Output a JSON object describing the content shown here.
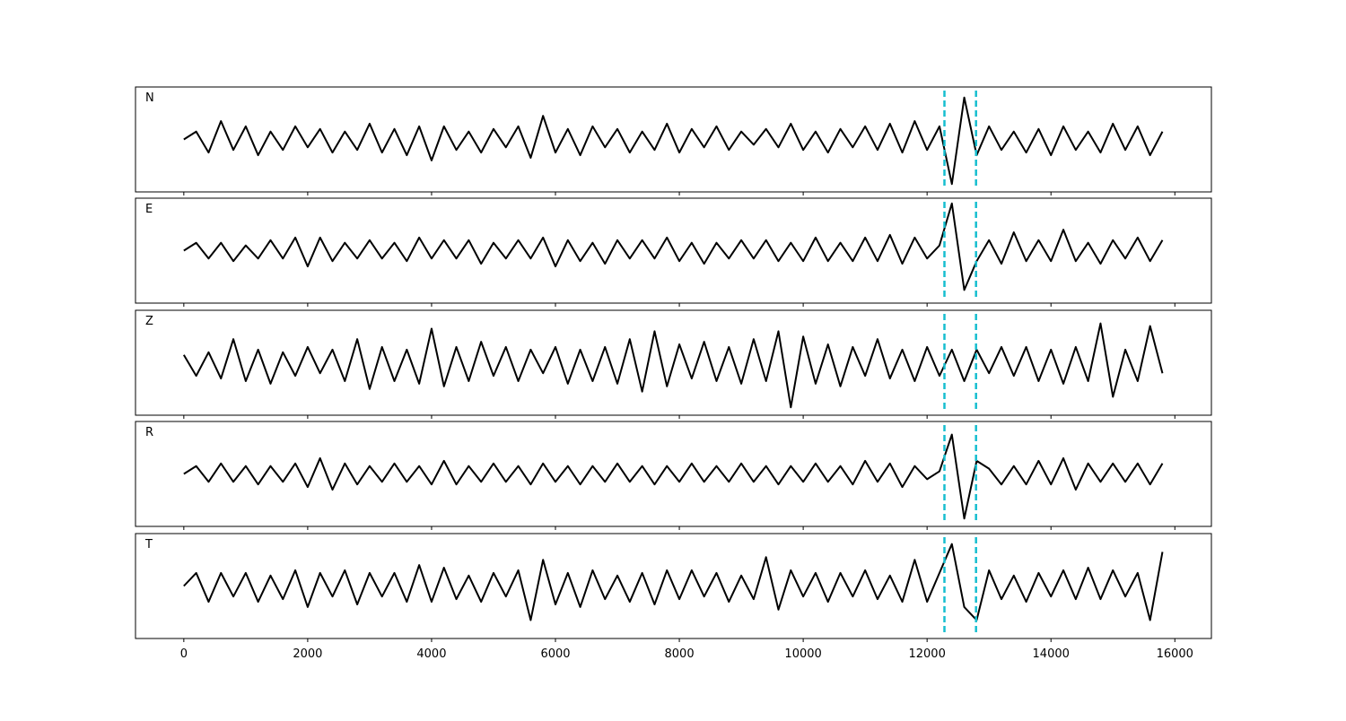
{
  "chart_data": [
    {
      "type": "line",
      "title": "N",
      "color": "#000000",
      "xlim": [
        -780,
        16590
      ],
      "ylim": [
        -2,
        2
      ],
      "xticks": [
        0,
        2000,
        4000,
        6000,
        8000,
        10000,
        12000,
        14000,
        16000
      ],
      "show_xtick_labels": false,
      "vlines": [
        12280,
        12790
      ],
      "vline_color": "#17becf",
      "x": [
        0,
        200,
        400,
        600,
        800,
        1000,
        1200,
        1400,
        1600,
        1800,
        2000,
        2200,
        2400,
        2600,
        2800,
        3000,
        3200,
        3400,
        3600,
        3800,
        4000,
        4200,
        4400,
        4600,
        4800,
        5000,
        5200,
        5400,
        5600,
        5800,
        6000,
        6200,
        6400,
        6600,
        6800,
        7000,
        7200,
        7400,
        7600,
        7800,
        8000,
        8200,
        8400,
        8600,
        8800,
        9000,
        9200,
        9400,
        9600,
        9800,
        10000,
        10200,
        10400,
        10600,
        10800,
        11000,
        11200,
        11400,
        11600,
        11800,
        12000,
        12200,
        12400,
        12600,
        12800,
        13000,
        13200,
        13400,
        13600,
        13800,
        14000,
        14200,
        14400,
        14600,
        14800,
        15000,
        15200,
        15400,
        15600,
        15800
      ],
      "values": [
        0,
        0.3,
        -0.5,
        0.7,
        -0.4,
        0.5,
        -0.6,
        0.3,
        -0.4,
        0.5,
        -0.3,
        0.4,
        -0.5,
        0.3,
        -0.4,
        0.6,
        -0.5,
        0.4,
        -0.6,
        0.5,
        -0.8,
        0.5,
        -0.4,
        0.3,
        -0.5,
        0.4,
        -0.3,
        0.5,
        -0.7,
        0.9,
        -0.5,
        0.4,
        -0.6,
        0.5,
        -0.3,
        0.4,
        -0.5,
        0.3,
        -0.4,
        0.6,
        -0.5,
        0.4,
        -0.3,
        0.5,
        -0.4,
        0.3,
        -0.2,
        0.4,
        -0.3,
        0.6,
        -0.4,
        0.3,
        -0.5,
        0.4,
        -0.3,
        0.5,
        -0.4,
        0.6,
        -0.5,
        0.7,
        -0.4,
        0.5,
        -1.7,
        1.6,
        -0.6,
        0.5,
        -0.4,
        0.3,
        -0.5,
        0.4,
        -0.6,
        0.5,
        -0.4,
        0.3,
        -0.5,
        0.6,
        -0.4,
        0.5,
        -0.6,
        0.3
      ]
    },
    {
      "type": "line",
      "title": "E",
      "color": "#000000",
      "xlim": [
        -780,
        16590
      ],
      "ylim": [
        -2,
        2
      ],
      "xticks": [
        0,
        2000,
        4000,
        6000,
        8000,
        10000,
        12000,
        14000,
        16000
      ],
      "show_xtick_labels": false,
      "vlines": [
        12280,
        12790
      ],
      "vline_color": "#17becf",
      "x": [
        0,
        200,
        400,
        600,
        800,
        1000,
        1200,
        1400,
        1600,
        1800,
        2000,
        2200,
        2400,
        2600,
        2800,
        3000,
        3200,
        3400,
        3600,
        3800,
        4000,
        4200,
        4400,
        4600,
        4800,
        5000,
        5200,
        5400,
        5600,
        5800,
        6000,
        6200,
        6400,
        6600,
        6800,
        7000,
        7200,
        7400,
        7600,
        7800,
        8000,
        8200,
        8400,
        8600,
        8800,
        9000,
        9200,
        9400,
        9600,
        9800,
        10000,
        10200,
        10400,
        10600,
        10800,
        11000,
        11200,
        11400,
        11600,
        11800,
        12000,
        12200,
        12400,
        12600,
        12800,
        13000,
        13200,
        13400,
        13600,
        13800,
        14000,
        14200,
        14400,
        14600,
        14800,
        15000,
        15200,
        15400,
        15600,
        15800
      ],
      "values": [
        0,
        0.3,
        -0.3,
        0.3,
        -0.4,
        0.2,
        -0.3,
        0.4,
        -0.3,
        0.5,
        -0.6,
        0.5,
        -0.4,
        0.3,
        -0.3,
        0.4,
        -0.3,
        0.3,
        -0.4,
        0.5,
        -0.3,
        0.4,
        -0.3,
        0.4,
        -0.5,
        0.3,
        -0.3,
        0.4,
        -0.3,
        0.5,
        -0.6,
        0.4,
        -0.4,
        0.3,
        -0.5,
        0.4,
        -0.3,
        0.4,
        -0.3,
        0.5,
        -0.4,
        0.3,
        -0.5,
        0.3,
        -0.3,
        0.4,
        -0.3,
        0.4,
        -0.4,
        0.3,
        -0.4,
        0.5,
        -0.4,
        0.3,
        -0.4,
        0.5,
        -0.4,
        0.6,
        -0.5,
        0.5,
        -0.3,
        0.2,
        1.8,
        -1.5,
        -0.4,
        0.4,
        -0.5,
        0.7,
        -0.4,
        0.4,
        -0.4,
        0.8,
        -0.4,
        0.3,
        -0.5,
        0.4,
        -0.3,
        0.5,
        -0.4,
        0.4
      ]
    },
    {
      "type": "line",
      "title": "Z",
      "color": "#000000",
      "xlim": [
        -780,
        16590
      ],
      "ylim": [
        -2,
        2
      ],
      "xticks": [
        0,
        2000,
        4000,
        6000,
        8000,
        10000,
        12000,
        14000,
        16000
      ],
      "show_xtick_labels": false,
      "vlines": [
        12280,
        12790
      ],
      "vline_color": "#17becf",
      "x": [
        0,
        200,
        400,
        600,
        800,
        1000,
        1200,
        1400,
        1600,
        1800,
        2000,
        2200,
        2400,
        2600,
        2800,
        3000,
        3200,
        3400,
        3600,
        3800,
        4000,
        4200,
        4400,
        4600,
        4800,
        5000,
        5200,
        5400,
        5600,
        5800,
        6000,
        6200,
        6400,
        6600,
        6800,
        7000,
        7200,
        7400,
        7600,
        7800,
        8000,
        8200,
        8400,
        8600,
        8800,
        9000,
        9200,
        9400,
        9600,
        9800,
        10000,
        10200,
        10400,
        10600,
        10800,
        11000,
        11200,
        11400,
        11600,
        11800,
        12000,
        12200,
        12400,
        12600,
        12800,
        13000,
        13200,
        13400,
        13600,
        13800,
        14000,
        14200,
        14400,
        14600,
        14800,
        15000,
        15200,
        15400,
        15600,
        15800
      ],
      "values": [
        0.3,
        -0.5,
        0.4,
        -0.6,
        0.9,
        -0.7,
        0.5,
        -0.8,
        0.4,
        -0.5,
        0.6,
        -0.4,
        0.5,
        -0.7,
        0.9,
        -1.0,
        0.6,
        -0.7,
        0.5,
        -0.8,
        1.3,
        -0.9,
        0.6,
        -0.7,
        0.8,
        -0.5,
        0.6,
        -0.7,
        0.5,
        -0.4,
        0.6,
        -0.8,
        0.5,
        -0.7,
        0.6,
        -0.8,
        0.9,
        -1.1,
        1.2,
        -0.9,
        0.7,
        -0.6,
        0.8,
        -0.7,
        0.6,
        -0.8,
        0.9,
        -0.7,
        1.2,
        -1.7,
        1.0,
        -0.8,
        0.7,
        -0.9,
        0.6,
        -0.5,
        0.9,
        -0.6,
        0.5,
        -0.7,
        0.6,
        -0.5,
        0.5,
        -0.7,
        0.5,
        -0.4,
        0.6,
        -0.5,
        0.6,
        -0.7,
        0.5,
        -0.8,
        0.6,
        -0.7,
        1.5,
        -1.3,
        0.5,
        -0.7,
        1.4,
        -0.4
      ]
    },
    {
      "type": "line",
      "title": "R",
      "color": "#000000",
      "xlim": [
        -780,
        16590
      ],
      "ylim": [
        -2,
        2
      ],
      "xticks": [
        0,
        2000,
        4000,
        6000,
        8000,
        10000,
        12000,
        14000,
        16000
      ],
      "show_xtick_labels": false,
      "vlines": [
        12280,
        12790
      ],
      "vline_color": "#17becf",
      "x": [
        0,
        200,
        400,
        600,
        800,
        1000,
        1200,
        1400,
        1600,
        1800,
        2000,
        2200,
        2400,
        2600,
        2800,
        3000,
        3200,
        3400,
        3600,
        3800,
        4000,
        4200,
        4400,
        4600,
        4800,
        5000,
        5200,
        5400,
        5600,
        5800,
        6000,
        6200,
        6400,
        6600,
        6800,
        7000,
        7200,
        7400,
        7600,
        7800,
        8000,
        8200,
        8400,
        8600,
        8800,
        9000,
        9200,
        9400,
        9600,
        9800,
        10000,
        10200,
        10400,
        10600,
        10800,
        11000,
        11200,
        11400,
        11600,
        11800,
        12000,
        12200,
        12400,
        12600,
        12800,
        13000,
        13200,
        13400,
        13600,
        13800,
        14000,
        14200,
        14400,
        14600,
        14800,
        15000,
        15200,
        15400,
        15600,
        15800
      ],
      "values": [
        0,
        0.3,
        -0.3,
        0.4,
        -0.3,
        0.3,
        -0.4,
        0.3,
        -0.3,
        0.4,
        -0.5,
        0.6,
        -0.6,
        0.4,
        -0.4,
        0.3,
        -0.3,
        0.4,
        -0.3,
        0.3,
        -0.4,
        0.5,
        -0.4,
        0.3,
        -0.3,
        0.4,
        -0.3,
        0.3,
        -0.4,
        0.4,
        -0.3,
        0.3,
        -0.4,
        0.3,
        -0.3,
        0.4,
        -0.3,
        0.3,
        -0.4,
        0.3,
        -0.3,
        0.4,
        -0.3,
        0.3,
        -0.3,
        0.4,
        -0.3,
        0.3,
        -0.4,
        0.3,
        -0.3,
        0.4,
        -0.3,
        0.3,
        -0.4,
        0.5,
        -0.3,
        0.4,
        -0.5,
        0.3,
        -0.2,
        0.1,
        1.5,
        -1.7,
        0.5,
        0.2,
        -0.4,
        0.3,
        -0.4,
        0.5,
        -0.4,
        0.6,
        -0.6,
        0.4,
        -0.3,
        0.4,
        -0.3,
        0.4,
        -0.4,
        0.4
      ]
    },
    {
      "type": "line",
      "title": "T",
      "color": "#000000",
      "xlim": [
        -780,
        16590
      ],
      "ylim": [
        -2,
        2
      ],
      "xticks": [
        0,
        2000,
        4000,
        6000,
        8000,
        10000,
        12000,
        14000,
        16000
      ],
      "show_xtick_labels": true,
      "vlines": [
        12280,
        12790
      ],
      "vline_color": "#17becf",
      "x": [
        0,
        200,
        400,
        600,
        800,
        1000,
        1200,
        1400,
        1600,
        1800,
        2000,
        2200,
        2400,
        2600,
        2800,
        3000,
        3200,
        3400,
        3600,
        3800,
        4000,
        4200,
        4400,
        4600,
        4800,
        5000,
        5200,
        5400,
        5600,
        5800,
        6000,
        6200,
        6400,
        6600,
        6800,
        7000,
        7200,
        7400,
        7600,
        7800,
        8000,
        8200,
        8400,
        8600,
        8800,
        9000,
        9200,
        9400,
        9600,
        9800,
        10000,
        10200,
        10400,
        10600,
        10800,
        11000,
        11200,
        11400,
        11600,
        11800,
        12000,
        12200,
        12400,
        12600,
        12800,
        13000,
        13200,
        13400,
        13600,
        13800,
        14000,
        14200,
        14400,
        14600,
        14800,
        15000,
        15200,
        15400,
        15600,
        15800
      ],
      "values": [
        0,
        0.5,
        -0.6,
        0.5,
        -0.4,
        0.5,
        -0.6,
        0.4,
        -0.5,
        0.6,
        -0.8,
        0.5,
        -0.4,
        0.6,
        -0.7,
        0.5,
        -0.4,
        0.5,
        -0.6,
        0.8,
        -0.6,
        0.7,
        -0.5,
        0.4,
        -0.6,
        0.5,
        -0.4,
        0.6,
        -1.3,
        1.0,
        -0.7,
        0.5,
        -0.8,
        0.6,
        -0.5,
        0.4,
        -0.6,
        0.5,
        -0.7,
        0.6,
        -0.5,
        0.6,
        -0.4,
        0.5,
        -0.6,
        0.4,
        -0.5,
        1.1,
        -0.9,
        0.6,
        -0.4,
        0.5,
        -0.6,
        0.5,
        -0.4,
        0.6,
        -0.5,
        0.4,
        -0.6,
        1.0,
        -0.6,
        0.5,
        1.6,
        -0.8,
        -1.3,
        0.6,
        -0.5,
        0.4,
        -0.6,
        0.5,
        -0.4,
        0.6,
        -0.5,
        0.7,
        -0.5,
        0.6,
        -0.4,
        0.5,
        -1.3,
        1.3
      ]
    }
  ]
}
